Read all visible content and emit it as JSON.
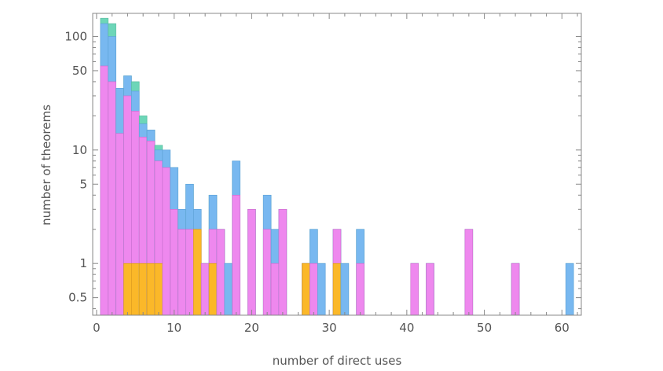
{
  "chart_data": {
    "type": "bar",
    "stacked": true,
    "yscale": "log",
    "xlabel": "number of direct uses",
    "ylabel": "number of theorems",
    "xlim": [
      -0.5,
      62.5
    ],
    "ylim": [
      0.35,
      160
    ],
    "xticks": [
      0,
      10,
      20,
      30,
      40,
      50,
      60
    ],
    "yticks": [
      0.5,
      1,
      5,
      10,
      50,
      100
    ],
    "ytick_labels": [
      "0.5",
      "1",
      "5",
      "10",
      "50",
      "100"
    ],
    "grid": false,
    "series_colors": {
      "orange": "#fbb829",
      "magenta": "#ee88ee",
      "blue": "#78b8f0",
      "teal": "#6dd6b8"
    },
    "bars": [
      {
        "x": 1,
        "magenta": 55,
        "blue": 130,
        "teal": 145
      },
      {
        "x": 2,
        "magenta": 40,
        "blue": 100,
        "teal": 130
      },
      {
        "x": 3,
        "magenta": 14,
        "blue": 35,
        "teal": 35
      },
      {
        "x": 4,
        "orange": 1,
        "magenta": 30,
        "blue": 45,
        "teal": 45
      },
      {
        "x": 5,
        "orange": 1,
        "magenta": 22,
        "blue": 33,
        "teal": 40
      },
      {
        "x": 6,
        "orange": 1,
        "magenta": 13,
        "blue": 17,
        "teal": 20
      },
      {
        "x": 7,
        "orange": 1,
        "magenta": 12,
        "blue": 15,
        "teal": 15
      },
      {
        "x": 8,
        "orange": 1,
        "magenta": 8,
        "blue": 10,
        "teal": 11
      },
      {
        "x": 9,
        "magenta": 7,
        "blue": 10,
        "teal": 10
      },
      {
        "x": 10,
        "magenta": 3,
        "blue": 7,
        "teal": 7
      },
      {
        "x": 11,
        "magenta": 2,
        "blue": 3,
        "teal": 3
      },
      {
        "x": 12,
        "magenta": 2,
        "blue": 5,
        "teal": 5
      },
      {
        "x": 13,
        "orange": 2,
        "magenta": 2,
        "blue": 3,
        "teal": 3
      },
      {
        "x": 14,
        "magenta": 1,
        "blue": 1,
        "teal": 1
      },
      {
        "x": 15,
        "orange": 1,
        "magenta": 2,
        "blue": 4,
        "teal": 4
      },
      {
        "x": 16,
        "magenta": 2,
        "blue": 2,
        "teal": 2
      },
      {
        "x": 17,
        "blue": 1,
        "teal": 1
      },
      {
        "x": 18,
        "magenta": 4,
        "blue": 8,
        "teal": 8
      },
      {
        "x": 20,
        "magenta": 3,
        "blue": 3,
        "teal": 3
      },
      {
        "x": 22,
        "magenta": 2,
        "blue": 4,
        "teal": 4
      },
      {
        "x": 23,
        "magenta": 1,
        "blue": 2,
        "teal": 2
      },
      {
        "x": 24,
        "magenta": 3,
        "blue": 3,
        "teal": 3
      },
      {
        "x": 27,
        "orange": 1,
        "magenta": 1,
        "blue": 1,
        "teal": 1
      },
      {
        "x": 28,
        "magenta": 1,
        "blue": 2,
        "teal": 2
      },
      {
        "x": 29,
        "blue": 1,
        "teal": 1
      },
      {
        "x": 31,
        "orange": 1,
        "magenta": 2,
        "blue": 2,
        "teal": 2
      },
      {
        "x": 32,
        "blue": 1,
        "teal": 1
      },
      {
        "x": 34,
        "magenta": 1,
        "blue": 2,
        "teal": 2
      },
      {
        "x": 41,
        "magenta": 1,
        "blue": 1,
        "teal": 1
      },
      {
        "x": 43,
        "magenta": 1,
        "blue": 1,
        "teal": 1
      },
      {
        "x": 48,
        "magenta": 2,
        "blue": 2,
        "teal": 2
      },
      {
        "x": 54,
        "magenta": 1,
        "blue": 1,
        "teal": 1
      },
      {
        "x": 61,
        "blue": 1,
        "teal": 1
      }
    ]
  }
}
